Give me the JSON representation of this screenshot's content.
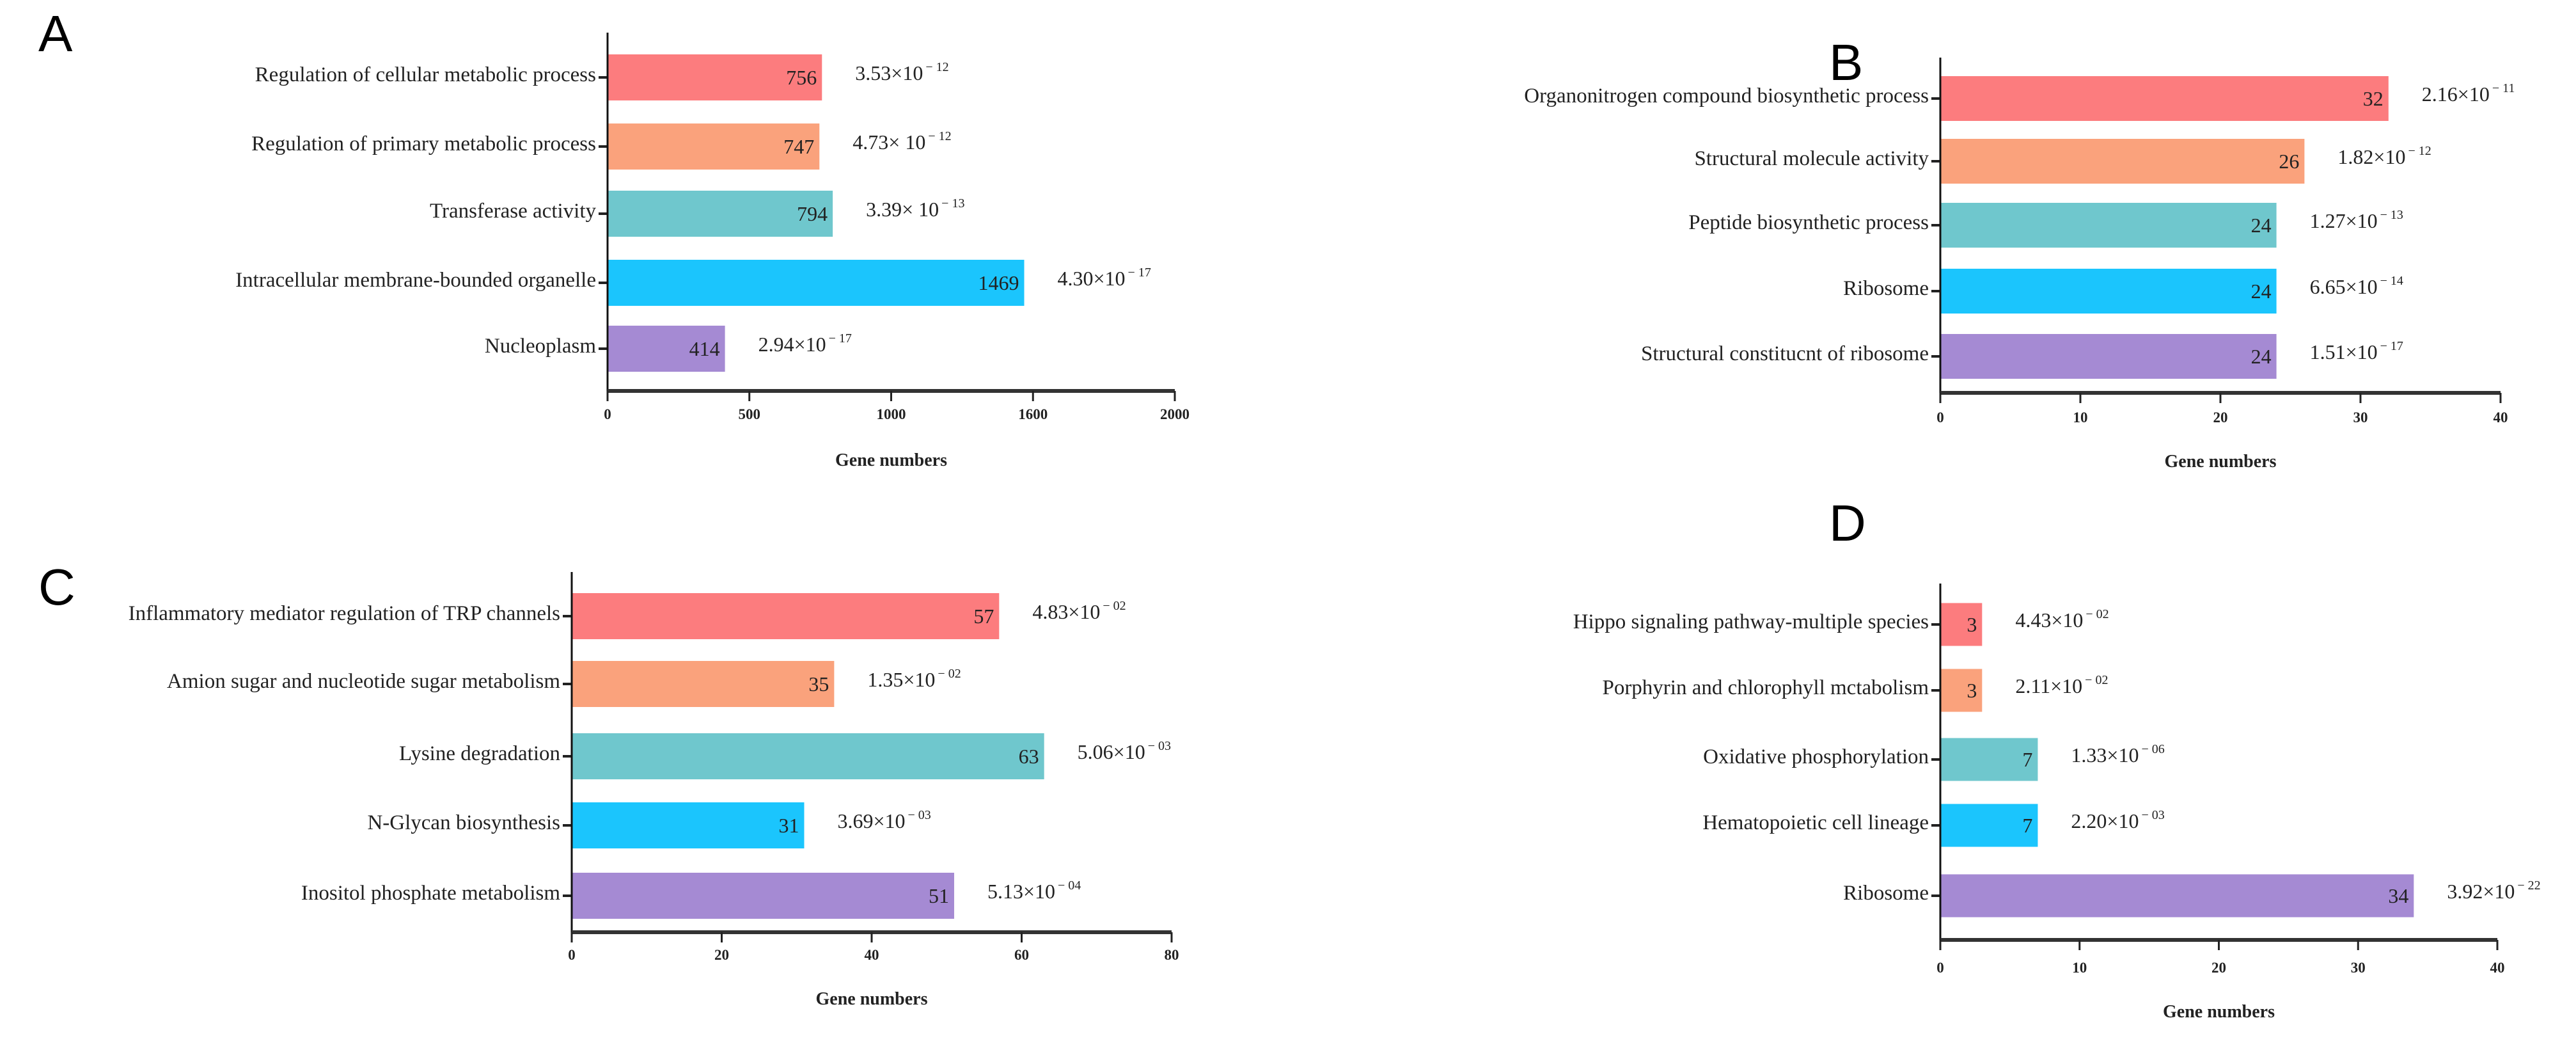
{
  "colors": [
    "#FC7C7E",
    "#FAA27C",
    "#6FC7CD",
    "#1BC5FD",
    "#A58AD3"
  ],
  "chart_data": [
    {
      "type": "bar",
      "orientation": "horizontal",
      "panel_label": "A",
      "categories": [
        "Regulation of cellular metabolic process",
        "Regulation of primary metabolic process",
        "Transferase activity",
        "Intracellular membrane-bounded organelle",
        "Nucleoplasm"
      ],
      "values": [
        756,
        747,
        794,
        1469,
        414
      ],
      "p_values": [
        {
          "mantissa": "3.53×10",
          "exp": "− 12"
        },
        {
          "mantissa": "4.73× 10",
          "exp": "− 12"
        },
        {
          "mantissa": "3.39× 10",
          "exp": "− 13"
        },
        {
          "mantissa": "4.30×10",
          "exp": "− 17"
        },
        {
          "mantissa": "2.94×10",
          "exp": "− 17"
        }
      ],
      "xlabel": "Gene numbers",
      "xlim": [
        0,
        2000
      ],
      "xticks": [
        "0",
        "500",
        "1000",
        "1600",
        "2000"
      ]
    },
    {
      "type": "bar",
      "orientation": "horizontal",
      "panel_label": "B",
      "categories": [
        "Organonitrogen compound biosynthetic process",
        "Structural molecule activity",
        "Peptide biosynthetic process",
        "Ribosome",
        "Structural constitucnt of ribosome"
      ],
      "values": [
        32,
        26,
        24,
        24,
        24
      ],
      "p_values": [
        {
          "mantissa": "2.16×10",
          "exp": "− 11"
        },
        {
          "mantissa": "1.82×10",
          "exp": "− 12"
        },
        {
          "mantissa": "1.27×10",
          "exp": "− 13"
        },
        {
          "mantissa": "6.65×10",
          "exp": "− 14"
        },
        {
          "mantissa": "1.51×10",
          "exp": "− 17"
        }
      ],
      "xlabel": "Gene numbers",
      "xlim": [
        0,
        40
      ],
      "xticks": [
        "0",
        "10",
        "20",
        "30",
        "40"
      ]
    },
    {
      "type": "bar",
      "orientation": "horizontal",
      "panel_label": "C",
      "categories": [
        "Inflammatory mediator regulation of TRP channels",
        "Amion sugar and nucleotide sugar metabolism",
        "Lysine degradation",
        "N-Glycan biosynthesis",
        "Inositol phosphate metabolism"
      ],
      "values": [
        57,
        35,
        63,
        31,
        51
      ],
      "p_values": [
        {
          "mantissa": "4.83×10",
          "exp": "− 02"
        },
        {
          "mantissa": "1.35×10",
          "exp": "− 02"
        },
        {
          "mantissa": "5.06×10",
          "exp": "− 03"
        },
        {
          "mantissa": "3.69×10",
          "exp": "− 03"
        },
        {
          "mantissa": "5.13×10",
          "exp": "− 04"
        }
      ],
      "xlabel": "Gene numbers",
      "xlim": [
        0,
        80
      ],
      "xticks": [
        "0",
        "20",
        "40",
        "60",
        "80"
      ]
    },
    {
      "type": "bar",
      "orientation": "horizontal",
      "panel_label": "D",
      "categories": [
        "Hippo signaling pathway-multiple species",
        "Porphyrin and chlorophyll mctabolism",
        "Oxidative phosphorylation",
        "Hematopoietic cell lineage",
        "Ribosome"
      ],
      "values": [
        3,
        3,
        7,
        7,
        34
      ],
      "p_values": [
        {
          "mantissa": "4.43×10",
          "exp": "− 02"
        },
        {
          "mantissa": "2.11×10",
          "exp": "− 02"
        },
        {
          "mantissa": "1.33×10",
          "exp": "− 06"
        },
        {
          "mantissa": "2.20×10",
          "exp": "− 03"
        },
        {
          "mantissa": "3.92×10",
          "exp": "− 22"
        }
      ],
      "xlabel": "Gene numbers",
      "xlim": [
        0,
        40
      ],
      "xticks": [
        "0",
        "10",
        "20",
        "30",
        "40"
      ]
    }
  ]
}
